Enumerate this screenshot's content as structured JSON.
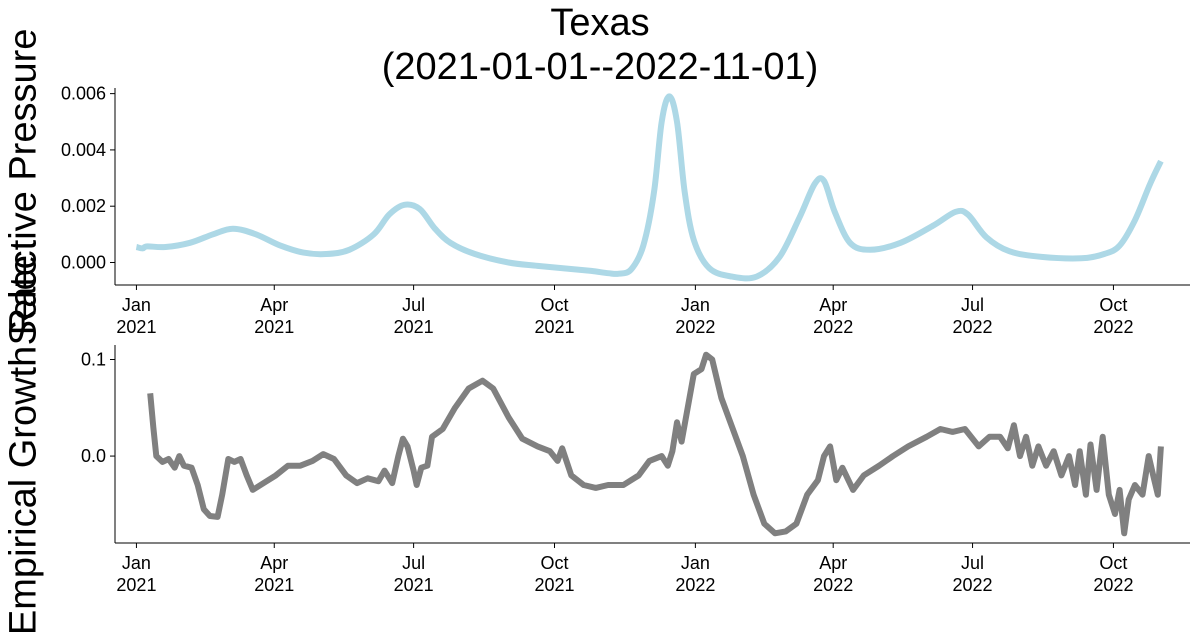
{
  "title": {
    "line1": "Texas",
    "line2": "(2021-01-01--2022-11-01)"
  },
  "chart_data": [
    {
      "type": "line",
      "ylabel": "Selective Pressure",
      "xlim": [
        "2020-12-18",
        "2022-11-20"
      ],
      "ylim": [
        -0.0008,
        0.0062
      ],
      "x_ticks": [
        "2021-01-01",
        "2021-04-01",
        "2021-07-01",
        "2021-10-01",
        "2022-01-01",
        "2022-04-01",
        "2022-07-01",
        "2022-10-01"
      ],
      "x_tick_labels": [
        [
          "Jan",
          "2021"
        ],
        [
          "Apr",
          "2021"
        ],
        [
          "Jul",
          "2021"
        ],
        [
          "Oct",
          "2021"
        ],
        [
          "Jan",
          "2022"
        ],
        [
          "Apr",
          "2022"
        ],
        [
          "Jul",
          "2022"
        ],
        [
          "Oct",
          "2022"
        ]
      ],
      "y_ticks": [
        0.0,
        0.002,
        0.004,
        0.006
      ],
      "y_tick_labels": [
        "0.000",
        "0.002",
        "0.004",
        "0.006"
      ],
      "grid": false,
      "series": [
        {
          "color": "#add8e6",
          "points": [
            [
              "2021-01-01",
              0.00055
            ],
            [
              "2021-01-05",
              0.0005
            ],
            [
              "2021-01-08",
              0.00057
            ],
            [
              "2021-01-20",
              0.00055
            ],
            [
              "2021-02-05",
              0.0007
            ],
            [
              "2021-02-20",
              0.001
            ],
            [
              "2021-03-05",
              0.0012
            ],
            [
              "2021-03-20",
              0.001
            ],
            [
              "2021-04-05",
              0.0006
            ],
            [
              "2021-04-20",
              0.00035
            ],
            [
              "2021-05-05",
              0.0003
            ],
            [
              "2021-05-20",
              0.00045
            ],
            [
              "2021-06-05",
              0.001
            ],
            [
              "2021-06-15",
              0.0017
            ],
            [
              "2021-06-25",
              0.00205
            ],
            [
              "2021-07-05",
              0.0019
            ],
            [
              "2021-07-15",
              0.0012
            ],
            [
              "2021-07-25",
              0.0007
            ],
            [
              "2021-08-10",
              0.0003
            ],
            [
              "2021-09-01",
              0.0
            ],
            [
              "2021-09-20",
              -0.00012
            ],
            [
              "2021-10-10",
              -0.00022
            ],
            [
              "2021-10-25",
              -0.0003
            ],
            [
              "2021-11-05",
              -0.00038
            ],
            [
              "2021-11-12",
              -0.0004
            ],
            [
              "2021-11-20",
              -0.00025
            ],
            [
              "2021-11-28",
              0.0006
            ],
            [
              "2021-12-05",
              0.0025
            ],
            [
              "2021-12-10",
              0.005
            ],
            [
              "2021-12-15",
              0.0059
            ],
            [
              "2021-12-20",
              0.005
            ],
            [
              "2021-12-25",
              0.0025
            ],
            [
              "2021-12-31",
              0.0008
            ],
            [
              "2022-01-10",
              -0.0002
            ],
            [
              "2022-01-25",
              -0.0005
            ],
            [
              "2022-02-10",
              -0.0005
            ],
            [
              "2022-02-25",
              0.0002
            ],
            [
              "2022-03-10",
              0.0016
            ],
            [
              "2022-03-20",
              0.0028
            ],
            [
              "2022-03-26",
              0.0029
            ],
            [
              "2022-04-02",
              0.0018
            ],
            [
              "2022-04-12",
              0.0007
            ],
            [
              "2022-04-25",
              0.00045
            ],
            [
              "2022-05-15",
              0.0007
            ],
            [
              "2022-06-05",
              0.0013
            ],
            [
              "2022-06-20",
              0.0018
            ],
            [
              "2022-06-28",
              0.0017
            ],
            [
              "2022-07-10",
              0.0009
            ],
            [
              "2022-07-25",
              0.0004
            ],
            [
              "2022-08-15",
              0.0002
            ],
            [
              "2022-09-10",
              0.00015
            ],
            [
              "2022-09-25",
              0.0003
            ],
            [
              "2022-10-05",
              0.0006
            ],
            [
              "2022-10-15",
              0.0015
            ],
            [
              "2022-10-25",
              0.0028
            ],
            [
              "2022-11-01",
              0.0036
            ]
          ]
        }
      ]
    },
    {
      "type": "line",
      "ylabel": "Empirical Growth Rate",
      "xlim": [
        "2020-12-18",
        "2022-11-20"
      ],
      "ylim": [
        -0.09,
        0.115
      ],
      "x_ticks": [
        "2021-01-01",
        "2021-04-01",
        "2021-07-01",
        "2021-10-01",
        "2022-01-01",
        "2022-04-01",
        "2022-07-01",
        "2022-10-01"
      ],
      "x_tick_labels": [
        [
          "Jan",
          "2021"
        ],
        [
          "Apr",
          "2021"
        ],
        [
          "Jul",
          "2021"
        ],
        [
          "Oct",
          "2021"
        ],
        [
          "Jan",
          "2022"
        ],
        [
          "Apr",
          "2022"
        ],
        [
          "Jul",
          "2022"
        ],
        [
          "Oct",
          "2022"
        ]
      ],
      "y_ticks": [
        0.0,
        0.1
      ],
      "y_tick_labels": [
        "0.0",
        "0.1"
      ],
      "grid": false,
      "series": [
        {
          "color": "#808080",
          "points": [
            [
              "2021-01-10",
              0.065
            ],
            [
              "2021-01-12",
              0.03
            ],
            [
              "2021-01-14",
              0.0
            ],
            [
              "2021-01-18",
              -0.006
            ],
            [
              "2021-01-22",
              -0.003
            ],
            [
              "2021-01-26",
              -0.012
            ],
            [
              "2021-01-29",
              0.0
            ],
            [
              "2021-02-01",
              -0.01
            ],
            [
              "2021-02-06",
              -0.012
            ],
            [
              "2021-02-10",
              -0.03
            ],
            [
              "2021-02-14",
              -0.055
            ],
            [
              "2021-02-18",
              -0.062
            ],
            [
              "2021-02-23",
              -0.063
            ],
            [
              "2021-02-26",
              -0.04
            ],
            [
              "2021-03-02",
              -0.003
            ],
            [
              "2021-03-06",
              -0.006
            ],
            [
              "2021-03-10",
              -0.003
            ],
            [
              "2021-03-14",
              -0.02
            ],
            [
              "2021-03-18",
              -0.035
            ],
            [
              "2021-03-25",
              -0.028
            ],
            [
              "2021-04-02",
              -0.02
            ],
            [
              "2021-04-10",
              -0.01
            ],
            [
              "2021-04-18",
              -0.01
            ],
            [
              "2021-04-26",
              -0.005
            ],
            [
              "2021-05-03",
              0.002
            ],
            [
              "2021-05-10",
              -0.003
            ],
            [
              "2021-05-18",
              -0.02
            ],
            [
              "2021-05-25",
              -0.028
            ],
            [
              "2021-06-01",
              -0.023
            ],
            [
              "2021-06-08",
              -0.026
            ],
            [
              "2021-06-12",
              -0.015
            ],
            [
              "2021-06-17",
              -0.028
            ],
            [
              "2021-06-21",
              0.0
            ],
            [
              "2021-06-24",
              0.018
            ],
            [
              "2021-06-27",
              0.01
            ],
            [
              "2021-07-01",
              -0.015
            ],
            [
              "2021-07-03",
              -0.03
            ],
            [
              "2021-07-06",
              -0.012
            ],
            [
              "2021-07-10",
              -0.01
            ],
            [
              "2021-07-13",
              0.02
            ],
            [
              "2021-07-20",
              0.028
            ],
            [
              "2021-07-28",
              0.05
            ],
            [
              "2021-08-06",
              0.07
            ],
            [
              "2021-08-15",
              0.078
            ],
            [
              "2021-08-22",
              0.07
            ],
            [
              "2021-09-01",
              0.04
            ],
            [
              "2021-09-10",
              0.018
            ],
            [
              "2021-09-20",
              0.01
            ],
            [
              "2021-09-28",
              0.005
            ],
            [
              "2021-10-03",
              -0.005
            ],
            [
              "2021-10-06",
              0.008
            ],
            [
              "2021-10-12",
              -0.02
            ],
            [
              "2021-10-20",
              -0.03
            ],
            [
              "2021-10-28",
              -0.033
            ],
            [
              "2021-11-05",
              -0.03
            ],
            [
              "2021-11-15",
              -0.03
            ],
            [
              "2021-11-25",
              -0.02
            ],
            [
              "2021-12-02",
              -0.005
            ],
            [
              "2021-12-10",
              0.0
            ],
            [
              "2021-12-14",
              -0.01
            ],
            [
              "2021-12-17",
              0.005
            ],
            [
              "2021-12-20",
              0.035
            ],
            [
              "2021-12-23",
              0.015
            ],
            [
              "2021-12-27",
              0.05
            ],
            [
              "2021-12-31",
              0.085
            ],
            [
              "2022-01-05",
              0.09
            ],
            [
              "2022-01-08",
              0.105
            ],
            [
              "2022-01-12",
              0.1
            ],
            [
              "2022-01-18",
              0.06
            ],
            [
              "2022-01-25",
              0.03
            ],
            [
              "2022-02-01",
              0.0
            ],
            [
              "2022-02-08",
              -0.04
            ],
            [
              "2022-02-15",
              -0.07
            ],
            [
              "2022-02-22",
              -0.08
            ],
            [
              "2022-03-01",
              -0.078
            ],
            [
              "2022-03-08",
              -0.07
            ],
            [
              "2022-03-15",
              -0.04
            ],
            [
              "2022-03-22",
              -0.025
            ],
            [
              "2022-03-26",
              0.0
            ],
            [
              "2022-03-30",
              0.01
            ],
            [
              "2022-04-03",
              -0.025
            ],
            [
              "2022-04-07",
              -0.012
            ],
            [
              "2022-04-14",
              -0.035
            ],
            [
              "2022-04-21",
              -0.02
            ],
            [
              "2022-05-01",
              -0.01
            ],
            [
              "2022-05-10",
              0.0
            ],
            [
              "2022-05-20",
              0.01
            ],
            [
              "2022-06-01",
              0.02
            ],
            [
              "2022-06-10",
              0.028
            ],
            [
              "2022-06-18",
              0.025
            ],
            [
              "2022-06-26",
              0.028
            ],
            [
              "2022-07-05",
              0.01
            ],
            [
              "2022-07-12",
              0.02
            ],
            [
              "2022-07-19",
              0.02
            ],
            [
              "2022-07-24",
              0.008
            ],
            [
              "2022-07-28",
              0.032
            ],
            [
              "2022-08-01",
              0.0
            ],
            [
              "2022-08-05",
              0.02
            ],
            [
              "2022-08-09",
              -0.01
            ],
            [
              "2022-08-13",
              0.01
            ],
            [
              "2022-08-18",
              -0.01
            ],
            [
              "2022-08-23",
              0.005
            ],
            [
              "2022-08-28",
              -0.02
            ],
            [
              "2022-09-02",
              0.0
            ],
            [
              "2022-09-06",
              -0.03
            ],
            [
              "2022-09-09",
              0.005
            ],
            [
              "2022-09-13",
              -0.04
            ],
            [
              "2022-09-16",
              0.012
            ],
            [
              "2022-09-20",
              -0.035
            ],
            [
              "2022-09-24",
              0.02
            ],
            [
              "2022-09-28",
              -0.04
            ],
            [
              "2022-10-02",
              -0.06
            ],
            [
              "2022-10-05",
              -0.035
            ],
            [
              "2022-10-08",
              -0.08
            ],
            [
              "2022-10-11",
              -0.045
            ],
            [
              "2022-10-15",
              -0.03
            ],
            [
              "2022-10-20",
              -0.04
            ],
            [
              "2022-10-24",
              0.0
            ],
            [
              "2022-10-27",
              -0.02
            ],
            [
              "2022-10-30",
              -0.04
            ],
            [
              "2022-11-01",
              0.01
            ]
          ]
        }
      ]
    }
  ]
}
